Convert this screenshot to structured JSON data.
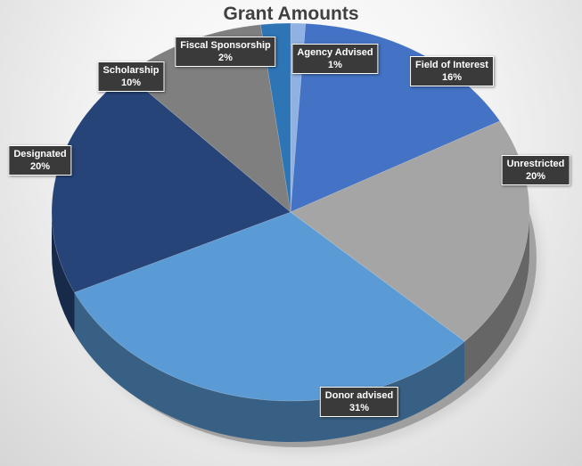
{
  "chart_data": {
    "type": "pie",
    "title": "Grant Amounts",
    "style": "3d",
    "categories": [
      "Agency Advised",
      "Field of Interest",
      "Unrestricted",
      "Donor advised",
      "Designated",
      "Scholarship",
      "Fiscal Sponsorship"
    ],
    "values": [
      1,
      16,
      20,
      31,
      20,
      10,
      2
    ],
    "labels": [
      "1%",
      "16%",
      "20%",
      "31%",
      "20%",
      "10%",
      "2%"
    ],
    "colors": [
      "#8fb1e3",
      "#4472c4",
      "#a5a5a5",
      "#5b9bd5",
      "#264478",
      "#7f7f7f",
      "#2e75b6"
    ],
    "legend": "none"
  }
}
